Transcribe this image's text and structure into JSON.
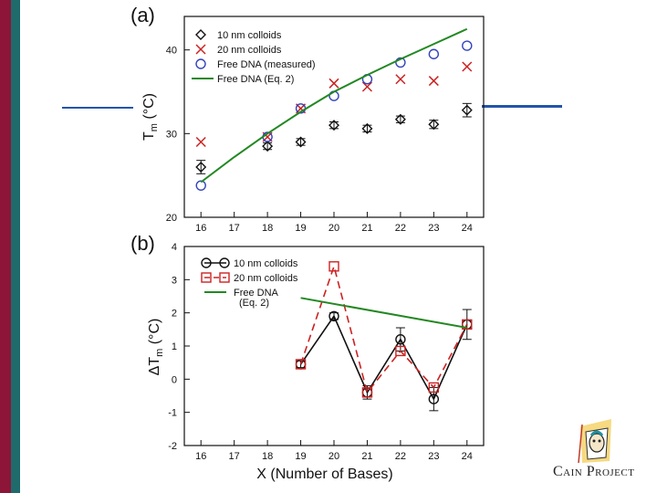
{
  "branding": {
    "logo_text": "Cain Project"
  },
  "colors": {
    "black": "#111111",
    "red": "#cc2222",
    "blue": "#3344bb",
    "green": "#228822"
  },
  "chart_data": [
    {
      "panel_label": "(a)",
      "type": "scatter",
      "x": [
        16,
        17,
        18,
        19,
        20,
        21,
        22,
        23,
        24
      ],
      "xlim": [
        15.5,
        24.5
      ],
      "ylim": [
        20,
        44
      ],
      "y_tick_labels": [
        "20",
        "30",
        "40"
      ],
      "x_tick_labels": [
        "16",
        "17",
        "18",
        "19",
        "20",
        "21",
        "22",
        "23",
        "24"
      ],
      "ylabel": "T_m (°C)",
      "series": [
        {
          "name": "10 nm colloids",
          "marker": "diamond",
          "color": "#111111",
          "x": [
            16,
            18,
            19,
            20,
            21,
            22,
            23,
            24
          ],
          "y": [
            26.0,
            28.5,
            29.0,
            31.0,
            30.6,
            31.7,
            31.1,
            32.8
          ],
          "err": [
            0.8,
            0.4,
            0.4,
            0.4,
            0.4,
            0.4,
            0.5,
            0.8
          ]
        },
        {
          "name": "20 nm colloids",
          "marker": "x",
          "color": "#cc2222",
          "x": [
            16,
            18,
            19,
            20,
            21,
            22,
            23,
            24
          ],
          "y": [
            29.0,
            29.6,
            33.0,
            36.0,
            35.6,
            36.5,
            36.3,
            38.0
          ]
        },
        {
          "name": "Free DNA (measured)",
          "marker": "circle",
          "color": "#3344bb",
          "x": [
            16,
            18,
            19,
            20,
            21,
            22,
            23,
            24
          ],
          "y": [
            23.8,
            29.6,
            33.0,
            34.5,
            36.5,
            38.5,
            39.5,
            40.5
          ]
        },
        {
          "name": "Free DNA (Eq. 2)",
          "marker": "line",
          "color": "#228822",
          "x": [
            16,
            17,
            18,
            19,
            20,
            21,
            22,
            23,
            24
          ],
          "y": [
            24.2,
            27.2,
            30.0,
            32.6,
            35.0,
            37.0,
            38.9,
            40.7,
            42.5
          ]
        }
      ]
    },
    {
      "panel_label": "(b)",
      "type": "line",
      "x": [
        16,
        17,
        18,
        19,
        20,
        21,
        22,
        23,
        24
      ],
      "xlim": [
        15.5,
        24.5
      ],
      "ylim": [
        -2,
        4
      ],
      "y_tick_labels": [
        "-2",
        "-1",
        "0",
        "1",
        "2",
        "3",
        "4"
      ],
      "x_tick_labels": [
        "16",
        "17",
        "18",
        "19",
        "20",
        "21",
        "22",
        "23",
        "24"
      ],
      "ylabel": "ΔT_m (°C)",
      "xlabel": "X (Number of Bases)",
      "series": [
        {
          "name": "10 nm colloids",
          "marker": "circle",
          "color": "#111111",
          "dash": "solid",
          "x": [
            19,
            20,
            21,
            22,
            23,
            24
          ],
          "y": [
            0.45,
            1.9,
            -0.4,
            1.2,
            -0.6,
            1.65
          ],
          "err": [
            0.1,
            0.1,
            0.2,
            0.35,
            0.35,
            0.45
          ]
        },
        {
          "name": "20 nm colloids",
          "marker": "square",
          "color": "#cc2222",
          "dash": "dashed",
          "x": [
            19,
            20,
            21,
            22,
            23,
            24
          ],
          "y": [
            0.45,
            3.4,
            -0.4,
            0.85,
            -0.25,
            1.65
          ]
        },
        {
          "name": "Free DNA\n(Eq. 2)",
          "name_lines": [
            "Free DNA",
            "(Eq. 2)"
          ],
          "marker": "line",
          "color": "#228822",
          "dash": "solid",
          "x": [
            19,
            24
          ],
          "y": [
            2.45,
            1.55
          ]
        }
      ]
    }
  ]
}
